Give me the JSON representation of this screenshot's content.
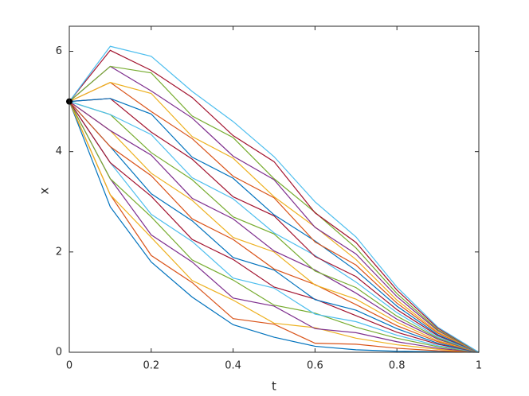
{
  "chart_data": {
    "type": "line",
    "xlabel": "t",
    "ylabel": "x",
    "xlim": [
      0,
      1
    ],
    "xticks": [
      0,
      0.2,
      0.4,
      0.6,
      0.8,
      1
    ],
    "ylim": [
      0,
      6.5
    ],
    "yticks": [
      0,
      2,
      4,
      6
    ],
    "grid": false,
    "box": true,
    "x": [
      0,
      0.1,
      0.2,
      0.3,
      0.4,
      0.5,
      0.6,
      0.7,
      0.8,
      0.9,
      1
    ],
    "series": [
      {
        "color": "#0072BD",
        "values": [
          5,
          2.9,
          1.8,
          1.1,
          0.55,
          0.3,
          0.12,
          0.05,
          0.02,
          0.01,
          0
        ]
      },
      {
        "color": "#D95319",
        "values": [
          5,
          3.14,
          1.93,
          1.39,
          0.67,
          0.56,
          0.18,
          0.16,
          0.08,
          0.03,
          0
        ]
      },
      {
        "color": "#EDB120",
        "values": [
          5,
          3.14,
          2.29,
          1.43,
          1.04,
          0.58,
          0.49,
          0.28,
          0.15,
          0.06,
          0
        ]
      },
      {
        "color": "#7E2F8E",
        "values": [
          5,
          3.46,
          2.34,
          1.8,
          1.08,
          0.92,
          0.47,
          0.39,
          0.21,
          0.08,
          0
        ]
      },
      {
        "color": "#77AC30",
        "values": [
          5,
          3.46,
          2.7,
          1.84,
          1.44,
          0.94,
          0.78,
          0.5,
          0.28,
          0.11,
          0
        ]
      },
      {
        "color": "#4DBEEE",
        "values": [
          5,
          3.78,
          2.75,
          2.21,
          1.48,
          1.28,
          0.76,
          0.61,
          0.34,
          0.13,
          0
        ]
      },
      {
        "color": "#A2142F",
        "values": [
          5,
          3.78,
          3.11,
          2.25,
          1.85,
          1.3,
          1.06,
          0.73,
          0.4,
          0.16,
          0
        ]
      },
      {
        "color": "#0072BD",
        "values": [
          5,
          4.1,
          3.16,
          2.62,
          1.89,
          1.64,
          1.05,
          0.84,
          0.47,
          0.18,
          0
        ]
      },
      {
        "color": "#D95319",
        "values": [
          5,
          4.1,
          3.52,
          2.66,
          2.25,
          1.66,
          1.35,
          0.95,
          0.53,
          0.21,
          0
        ]
      },
      {
        "color": "#EDB120",
        "values": [
          5,
          4.42,
          3.57,
          3.03,
          2.29,
          2.0,
          1.34,
          1.06,
          0.6,
          0.23,
          0
        ]
      },
      {
        "color": "#7E2F8E",
        "values": [
          5,
          4.42,
          3.93,
          3.07,
          2.66,
          2.02,
          1.64,
          1.18,
          0.66,
          0.26,
          0
        ]
      },
      {
        "color": "#77AC30",
        "values": [
          5,
          4.74,
          3.98,
          3.44,
          2.7,
          2.36,
          1.62,
          1.29,
          0.72,
          0.28,
          0
        ]
      },
      {
        "color": "#4DBEEE",
        "values": [
          5,
          4.74,
          4.34,
          3.48,
          3.06,
          2.38,
          1.93,
          1.4,
          0.79,
          0.3,
          0
        ]
      },
      {
        "color": "#A2142F",
        "values": [
          5,
          5.06,
          4.39,
          3.85,
          3.1,
          2.72,
          1.91,
          1.51,
          0.85,
          0.33,
          0
        ]
      },
      {
        "color": "#0072BD",
        "values": [
          5,
          5.06,
          4.75,
          3.89,
          3.47,
          2.74,
          2.22,
          1.63,
          0.92,
          0.35,
          0
        ]
      },
      {
        "color": "#D95319",
        "values": [
          5,
          5.38,
          4.8,
          4.26,
          3.51,
          3.08,
          2.2,
          1.74,
          0.98,
          0.38,
          0
        ]
      },
      {
        "color": "#EDB120",
        "values": [
          5,
          5.38,
          5.16,
          4.3,
          3.87,
          3.1,
          2.5,
          1.85,
          1.04,
          0.4,
          0
        ]
      },
      {
        "color": "#7E2F8E",
        "values": [
          5,
          5.7,
          5.21,
          4.67,
          3.91,
          3.44,
          2.49,
          1.96,
          1.11,
          0.43,
          0
        ]
      },
      {
        "color": "#77AC30",
        "values": [
          5,
          5.7,
          5.57,
          4.71,
          4.28,
          3.46,
          2.79,
          2.08,
          1.17,
          0.45,
          0
        ]
      },
      {
        "color": "#A2142F",
        "values": [
          5,
          6.02,
          5.62,
          5.08,
          4.32,
          3.8,
          2.78,
          2.19,
          1.24,
          0.48,
          0
        ]
      },
      {
        "color": "#4DBEEE",
        "values": [
          5,
          6.1,
          5.9,
          5.2,
          4.6,
          3.9,
          3.0,
          2.3,
          1.3,
          0.5,
          0
        ]
      }
    ],
    "marker": {
      "x": 0,
      "y": 5,
      "color": "#000000"
    }
  }
}
